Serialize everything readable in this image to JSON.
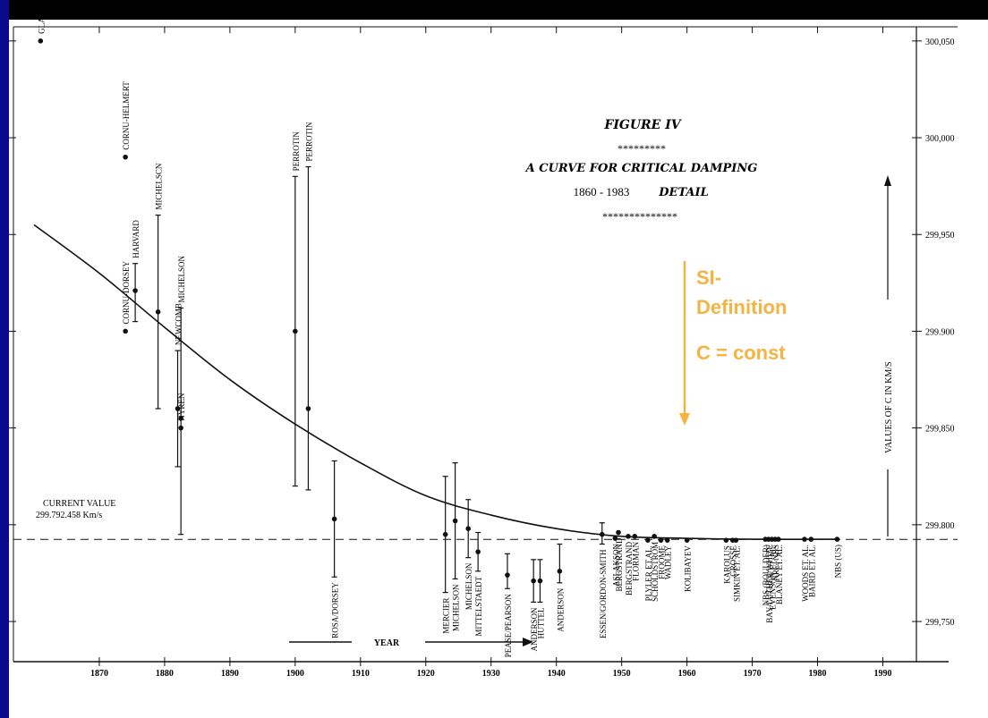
{
  "chart_data": {
    "type": "scatter",
    "title": "FIGURE IV",
    "title_stars": "*********",
    "subtitle": "A CURVE FOR CRITICAL DAMPING",
    "subtitle_range": "1860 - 1983",
    "subtitle_detail": "DETAIL",
    "subtitle_stars": "**************",
    "xlabel": "YEAR",
    "ylabel": "VALUES OF C IN KM/S",
    "xlim": [
      1860,
      1995
    ],
    "ylim": [
      299720,
      300055
    ],
    "x_ticks": [
      1870,
      1880,
      1890,
      1900,
      1910,
      1920,
      1930,
      1940,
      1950,
      1960,
      1970,
      1980,
      1990
    ],
    "x_tick_labels": [
      "1870",
      "1880",
      "1890",
      "1900",
      "1910",
      "1920",
      "1930",
      "1940",
      "1950",
      "1960",
      "1970",
      "1980",
      "1990"
    ],
    "y_ticks": [
      299750,
      299800,
      299850,
      299900,
      299950,
      300000,
      300050
    ],
    "y_tick_labels": [
      "299,750",
      "299.800",
      "299,850",
      "299.900",
      "299,950",
      "300,000",
      "300,050"
    ],
    "current_value": 299792.458,
    "current_value_label": "CURRENT VALUE",
    "current_value_text": "299.792.458 Km/s",
    "annotation": {
      "year": 1958,
      "lines": [
        "SI-",
        "Definition",
        "C = const"
      ],
      "color": "#f5b342"
    },
    "curve": {
      "x": [
        1860,
        1870,
        1880,
        1890,
        1900,
        1910,
        1920,
        1930,
        1940,
        1950,
        1960,
        1970,
        1983
      ],
      "y": [
        299955,
        299930,
        299902,
        299875,
        299852,
        299832,
        299815,
        299805,
        299798,
        299794,
        299793,
        299792.5,
        299792.5
      ]
    },
    "measurements": [
      {
        "label": "GLASENAPP",
        "x": 1861,
        "y": 300050
      },
      {
        "label": "CORNU-HELMERT",
        "x": 1874,
        "y": 299990
      },
      {
        "label": "HARVARD",
        "x": 1875.5,
        "y": 299921,
        "lo": 299905,
        "hi": 299935
      },
      {
        "label": "CORNU-DORSEY",
        "x": 1874,
        "y": 299900
      },
      {
        "label": "MICHELSCN",
        "x": 1879,
        "y": 299910,
        "lo": 299860,
        "hi": 299960
      },
      {
        "label": "NEWCOMB",
        "x": 1882,
        "y": 299860,
        "lo": 299830,
        "hi": 299890
      },
      {
        "label": "MICHELSON",
        "x": 1882.5,
        "y": 299855,
        "lo": 299795,
        "hi": 299912
      },
      {
        "label": "NYREN",
        "x": 1882.5,
        "y": 299850
      },
      {
        "label": "PERROTIN",
        "x": 1900,
        "y": 299900,
        "lo": 299820,
        "hi": 299980
      },
      {
        "label": "PERROTIN",
        "x": 1902,
        "y": 299860,
        "lo": 299818,
        "hi": 299985
      },
      {
        "label": "ROSA/DORSEY",
        "x": 1906,
        "y": 299803,
        "lo": 299773,
        "hi": 299833
      },
      {
        "label": "MERCIER",
        "x": 1923,
        "y": 299795,
        "lo": 299765,
        "hi": 299825
      },
      {
        "label": "MICHELSON",
        "x": 1924.5,
        "y": 299802,
        "lo": 299772,
        "hi": 299832
      },
      {
        "label": "MICHELSON",
        "x": 1926.5,
        "y": 299798,
        "lo": 299783,
        "hi": 299813
      },
      {
        "label": "MITTELSTAEDT",
        "x": 1928,
        "y": 299786,
        "lo": 299776,
        "hi": 299796
      },
      {
        "label": "PEASE/PEARSON",
        "x": 1932.5,
        "y": 299774,
        "lo": 299767,
        "hi": 299785
      },
      {
        "label": "ANDERSON",
        "x": 1936.5,
        "y": 299771,
        "lo": 299760,
        "hi": 299782
      },
      {
        "label": "HUTTEL",
        "x": 1937.5,
        "y": 299771,
        "lo": 299760,
        "hi": 299782
      },
      {
        "label": "ANDERSON",
        "x": 1940.5,
        "y": 299776,
        "lo": 299770,
        "hi": 299790
      },
      {
        "label": "ESSEN/GORDON-SMITH",
        "x": 1947,
        "y": 299795,
        "lo": 299790,
        "hi": 299801
      },
      {
        "label": "ASLAKSON",
        "x": 1949,
        "y": 299793
      },
      {
        "label": "BERGSTRAND",
        "x": 1949.5,
        "y": 299796
      },
      {
        "label": "BERGSTRAND",
        "x": 1951,
        "y": 299794
      },
      {
        "label": "FLORMAN",
        "x": 1952,
        "y": 299794
      },
      {
        "label": "PLYLER ET.AL.",
        "x": 1954,
        "y": 299792
      },
      {
        "label": "SCHOLDSTROM",
        "x": 1955,
        "y": 299794
      },
      {
        "label": "FROOME",
        "x": 1956,
        "y": 299792
      },
      {
        "label": "WADLEY",
        "x": 1957,
        "y": 299792
      },
      {
        "label": "KOLIBAYEV",
        "x": 1960,
        "y": 299792
      },
      {
        "label": "KAROLUS",
        "x": 1966,
        "y": 299792
      },
      {
        "label": "GROSSE",
        "x": 1967,
        "y": 299792
      },
      {
        "label": "SIMKIN ET. AL.",
        "x": 1967.5,
        "y": 299792
      },
      {
        "label": "NBS (BOULDER)",
        "x": 1972,
        "y": 299792.5
      },
      {
        "label": "EVENSON ET. AL.",
        "x": 1973,
        "y": 299792.5
      },
      {
        "label": "NRC, NBS",
        "x": 1973.5,
        "y": 299792.5
      },
      {
        "label": "BAY/LUTHER/WHITE",
        "x": 1972.5,
        "y": 299792.5
      },
      {
        "label": "BLANEY ET. AL.",
        "x": 1974,
        "y": 299792.5
      },
      {
        "label": "WOODS ET. AL.",
        "x": 1978,
        "y": 299792.5
      },
      {
        "label": "BAIRD ET. AL.",
        "x": 1979,
        "y": 299792.5
      },
      {
        "label": "NBS (US)",
        "x": 1983,
        "y": 299792.5
      }
    ]
  }
}
